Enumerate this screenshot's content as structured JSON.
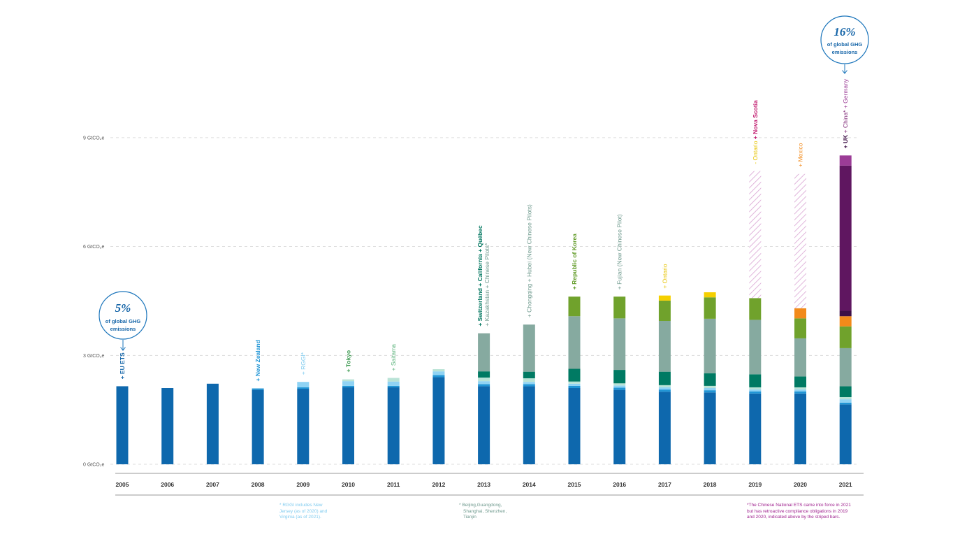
{
  "chart_data": {
    "type": "bar",
    "stacked": true,
    "categories": [
      "2005",
      "2006",
      "2007",
      "2008",
      "2009",
      "2010",
      "2011",
      "2012",
      "2013",
      "2014",
      "2015",
      "2016",
      "2017",
      "2018",
      "2019",
      "2020",
      "2021"
    ],
    "ylim": [
      0,
      10
    ],
    "yticks": [
      {
        "value": 0,
        "label": "0 GtCO₂e"
      },
      {
        "value": 3,
        "label": "3 GtCO₂e"
      },
      {
        "value": 6,
        "label": "6 GtCO₂e"
      },
      {
        "value": 9,
        "label": "9 GtCO₂e"
      }
    ],
    "grid": "horizontal dashed",
    "series_colors": {
      "EU ETS": "#0e68ad",
      "New Zealand": "#2196d6",
      "RGGI": "#8fd3f4",
      "Tokyo / Saitama": "#b9e3d6",
      "Switzerland / California / Quebec": "#007a63",
      "Kazakhstan / Chinese pilots": "#86aaa0",
      "Republic of Korea": "#70a22c",
      "Ontario": "#f5d000",
      "Mexico": "#f28a1a",
      "UK": "#3d0f46",
      "China": "#5f1660",
      "Germany": "#9b3c96",
      "China retroactive (striped)": "#d9a3d3"
    },
    "series": [
      {
        "values": [
          2.15,
          2.1,
          2.22,
          2.05,
          2.08,
          2.12,
          2.12,
          2.4,
          2.15,
          2.15,
          2.1,
          2.05,
          2.0,
          1.98,
          1.95,
          1.95,
          1.65
        ]
      },
      {
        "values": [
          0,
          0,
          0,
          0.04,
          0.04,
          0.04,
          0.04,
          0.06,
          0.06,
          0.06,
          0.06,
          0.06,
          0.06,
          0.06,
          0.06,
          0.06,
          0.05
        ]
      },
      {
        "values": [
          0,
          0,
          0,
          0,
          0.15,
          0.13,
          0.12,
          0.1,
          0.08,
          0.06,
          0.06,
          0.06,
          0.06,
          0.06,
          0.05,
          0.05,
          0.09
        ]
      },
      {
        "values": [
          0,
          0,
          0,
          0,
          0,
          0.05,
          0.1,
          0.06,
          0.1,
          0.1,
          0.06,
          0.06,
          0.06,
          0.06,
          0.06,
          0.06,
          0.06
        ]
      },
      {
        "values": [
          0,
          0,
          0,
          0,
          0,
          0,
          0,
          0,
          0.17,
          0.18,
          0.35,
          0.37,
          0.37,
          0.35,
          0.36,
          0.3,
          0.3
        ]
      },
      {
        "values": [
          0,
          0,
          0,
          0,
          0,
          0,
          0,
          0,
          1.05,
          1.3,
          1.45,
          1.42,
          1.4,
          1.5,
          1.5,
          1.05,
          1.05
        ]
      },
      {
        "values": [
          0,
          0,
          0,
          0,
          0,
          0,
          0,
          0,
          0,
          0,
          0.54,
          0.6,
          0.56,
          0.59,
          0.6,
          0.55,
          0.6
        ]
      },
      {
        "values": [
          0,
          0,
          0,
          0,
          0,
          0,
          0,
          0,
          0,
          0,
          0,
          0,
          0.14,
          0.14,
          0,
          0,
          0
        ]
      },
      {
        "values": [
          0,
          0,
          0,
          0,
          0,
          0,
          0,
          0,
          0,
          0,
          0,
          0,
          0,
          0,
          0,
          0.28,
          0.28
        ]
      },
      {
        "values": [
          0,
          0,
          0,
          0,
          0,
          0,
          0,
          0,
          0,
          0,
          0,
          0,
          0,
          0,
          0,
          0,
          0.15
        ]
      },
      {
        "values": [
          0,
          0,
          0,
          0,
          0,
          0,
          0,
          0,
          0,
          0,
          0,
          0,
          0,
          0,
          0,
          0,
          4.0
        ]
      },
      {
        "values": [
          0,
          0,
          0,
          0,
          0,
          0,
          0,
          0,
          0,
          0,
          0,
          0,
          0,
          0,
          0,
          0,
          0.28
        ]
      },
      {
        "values": [
          0,
          0,
          0,
          0,
          0,
          0,
          0,
          0,
          0,
          0,
          0,
          0,
          0,
          0,
          3.5,
          3.7,
          0
        ]
      }
    ],
    "annotations": [
      {
        "year": "2005",
        "parts": [
          {
            "text": "+ EU ETS",
            "color": "#1565a8",
            "bold": true
          }
        ]
      },
      {
        "year": "2008",
        "parts": [
          {
            "text": "+ New Zealand",
            "color": "#2196d6",
            "bold": true
          }
        ]
      },
      {
        "year": "2009",
        "parts": [
          {
            "text": "+ RGGI*",
            "color": "#7fcbef",
            "bold": false
          }
        ]
      },
      {
        "year": "2010",
        "parts": [
          {
            "text": "+ Tokyo",
            "color": "#3e9b52",
            "bold": true
          }
        ]
      },
      {
        "year": "2011",
        "parts": [
          {
            "text": "+ Saitama",
            "color": "#5ab27a",
            "bold": false
          }
        ]
      },
      {
        "year": "2013",
        "parts": [
          {
            "text": "+ Switzerland + California + Québec",
            "color": "#00765f",
            "bold": true
          }
        ],
        "line2": [
          {
            "text": "+ Kazakhstan + Chinese Pilots*",
            "color": "#6f9a8e",
            "bold": false
          }
        ]
      },
      {
        "year": "2014",
        "parts": [
          {
            "text": "+ Chongqing + Hubei (New Chinese Pilots)",
            "color": "#6f9a8e",
            "bold": false
          }
        ]
      },
      {
        "year": "2015",
        "parts": [
          {
            "text": "+ Republic of Korea",
            "color": "#5f9a25",
            "bold": true
          }
        ]
      },
      {
        "year": "2016",
        "parts": [
          {
            "text": "+ Fujian (New Chinese Pilot)",
            "color": "#6f9a8e",
            "bold": false
          }
        ]
      },
      {
        "year": "2017",
        "parts": [
          {
            "text": "+ Ontario",
            "color": "#e6c300",
            "bold": false
          }
        ]
      },
      {
        "year": "2019",
        "parts": [
          {
            "text": "- Ontario",
            "color": "#e6c300",
            "bold": false
          },
          {
            "text": " + Nova Scotia",
            "color": "#c0176c",
            "bold": true
          }
        ]
      },
      {
        "year": "2020",
        "parts": [
          {
            "text": "+ Mexico",
            "color": "#f28a1a",
            "bold": false
          }
        ]
      },
      {
        "year": "2021",
        "parts": [
          {
            "text": "+ UK",
            "color": "#3d0f46",
            "bold": true
          },
          {
            "text": " + China*",
            "color": "#7a1f72",
            "bold": false
          },
          {
            "text": " + Germany",
            "color": "#9b3c96",
            "bold": false
          }
        ]
      }
    ]
  },
  "callouts": {
    "left": {
      "pct": "5%",
      "line1": "of global GHG",
      "line2": "emissions"
    },
    "right": {
      "pct": "16%",
      "line1": "of global GHG",
      "line2": "emissions"
    }
  },
  "footnotes": {
    "rggi": {
      "lines": [
        "* RGGI includes New",
        "Jersey (as of 2020) and",
        "Virginia (as of 2021)."
      ],
      "color": "#7fcbef"
    },
    "pilots": {
      "lines": [
        "* Beijing,Guangdong,",
        "Shanghai, Shenzhen,",
        "Tianjin"
      ],
      "color": "#6f9a8e"
    },
    "china": {
      "lines": [
        "*The Chinese National ETS came into force in 2021",
        "but has retroactive compliance obligations in 2019",
        "and 2020, indicated above by the striped bars."
      ],
      "color": "#a0238f"
    }
  }
}
